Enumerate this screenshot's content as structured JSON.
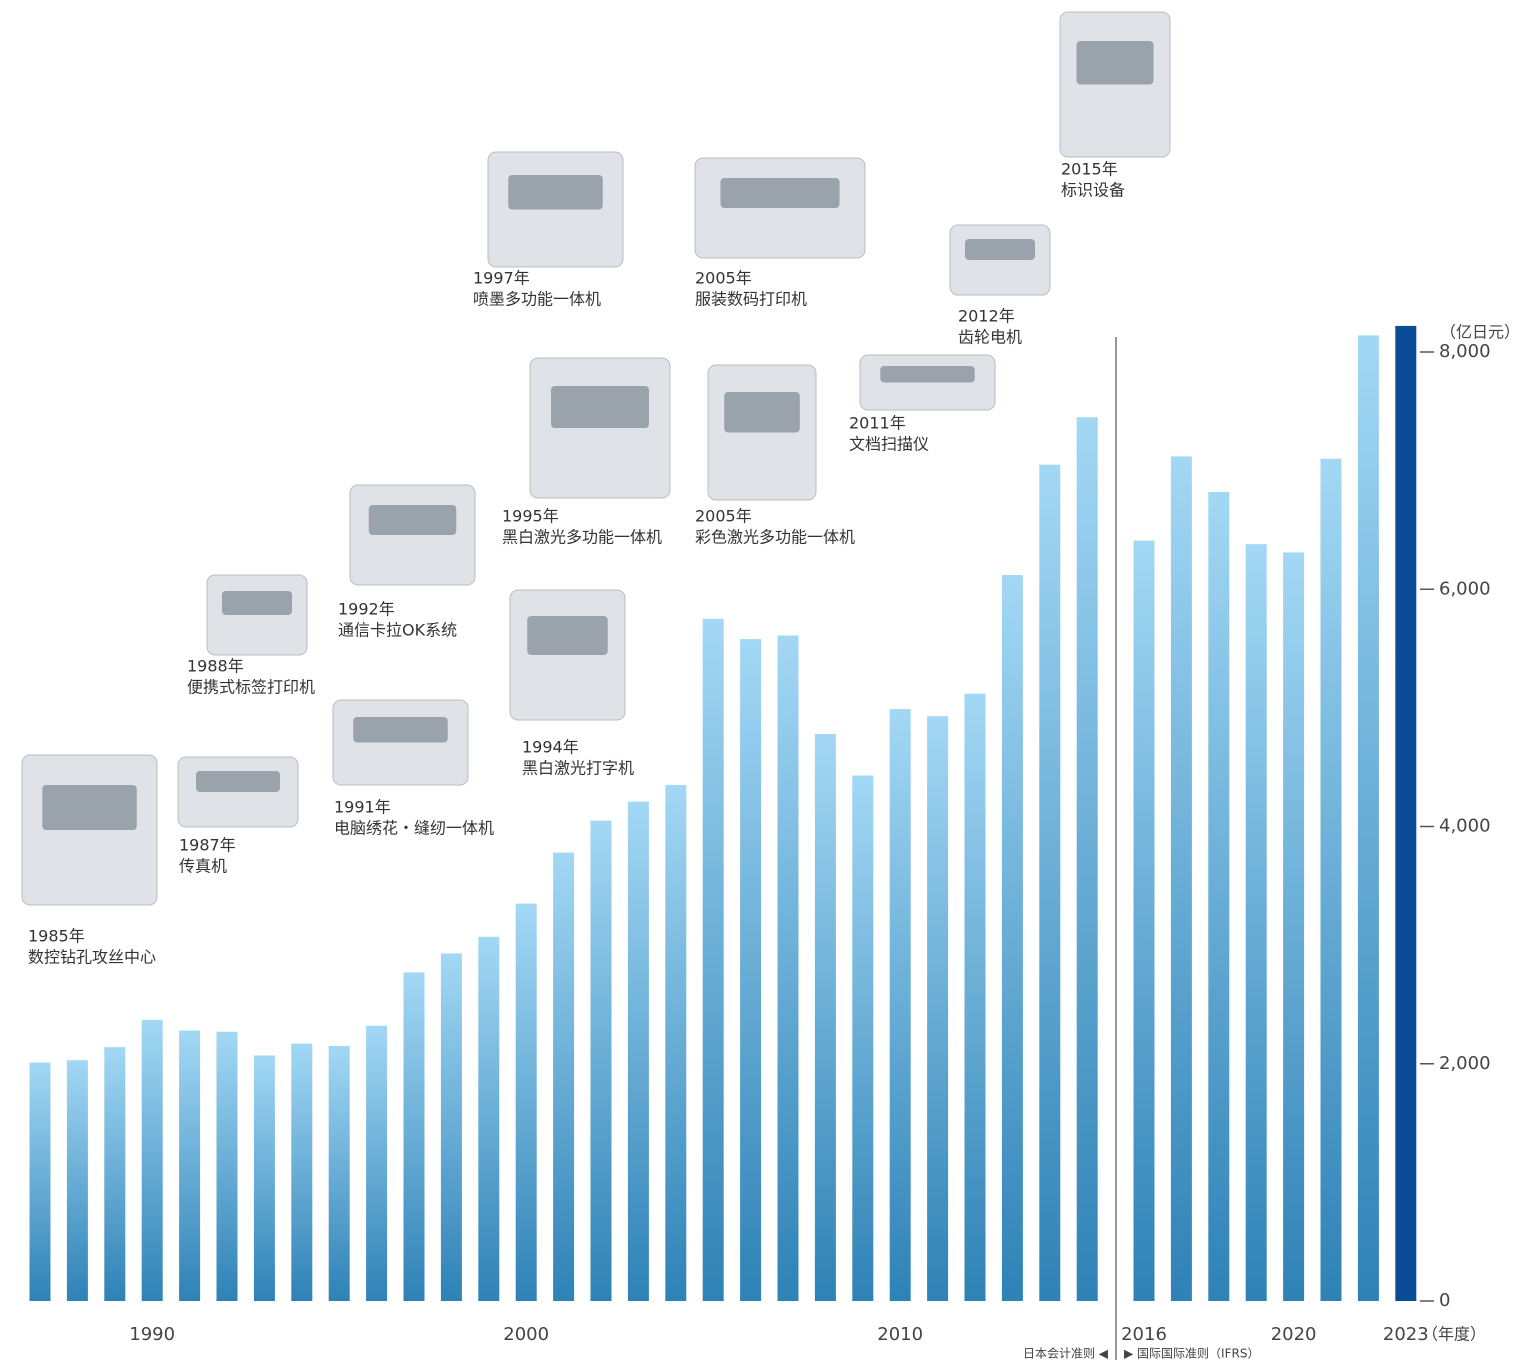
{
  "chart_data": {
    "type": "bar",
    "y_unit": "（亿日元）",
    "x_unit": "（年度）",
    "categories": [
      null,
      null,
      null,
      "1990",
      null,
      null,
      null,
      null,
      null,
      null,
      null,
      null,
      null,
      "2000",
      null,
      null,
      null,
      null,
      null,
      null,
      null,
      null,
      null,
      "2010",
      null,
      null,
      null,
      null,
      null,
      "2016",
      null,
      null,
      null,
      "2020",
      null,
      null,
      "2023"
    ],
    "values": [
      2010,
      2030,
      2140,
      2370,
      2280,
      2270,
      2070,
      2170,
      2150,
      2320,
      2770,
      2930,
      3070,
      3350,
      3780,
      4050,
      4210,
      4350,
      5750,
      5580,
      5610,
      4780,
      4430,
      4990,
      4930,
      5120,
      6120,
      7050,
      7450,
      6410,
      7120,
      6820,
      6380,
      6310,
      7100,
      8140,
      8220
    ],
    "color": "#a3d8f5",
    "gradient_bottom": "#2e82b6",
    "highlight_color": "#0b4c99",
    "ylim": [
      0,
      8000
    ],
    "yticks": [
      0,
      {
        "value": 2000,
        "label": "2,000"
      },
      {
        "value": 4000,
        "label": "4,000"
      },
      {
        "value": 6000,
        "label": "6,000"
      },
      {
        "value": 8000,
        "label": "8,000"
      }
    ],
    "standards": [
      "日本会计准则 ◀",
      "▶ 国际国际准则（IFRS）"
    ],
    "annotations": [
      {
        "year": "1985年",
        "name": "数控钻孔攻丝中心"
      },
      {
        "year": "1987年",
        "name": "传真机"
      },
      {
        "year": "1988年",
        "name": "便携式标签打印机"
      },
      {
        "year": "1991年",
        "name": "电脑绣花・缝纫一体机"
      },
      {
        "year": "1992年",
        "name": "通信卡拉OK系统"
      },
      {
        "year": "1994年",
        "name": "黑白激光打字机"
      },
      {
        "year": "1995年",
        "name": "黑白激光多功能一体机"
      },
      {
        "year": "1997年",
        "name": "喷墨多功能一体机"
      },
      {
        "year": "2005年",
        "name": "服装数码打印机"
      },
      {
        "year": "2005年",
        "name": "彩色激光多功能一体机"
      },
      {
        "year": "2011年",
        "name": "文档扫描仪"
      },
      {
        "year": "2012年",
        "name": "齿轮电机"
      },
      {
        "year": "2015年",
        "name": "标识设备"
      }
    ]
  }
}
